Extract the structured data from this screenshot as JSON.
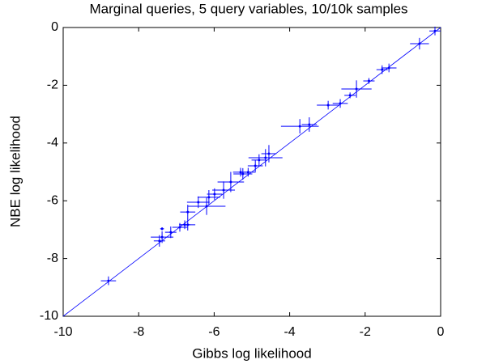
{
  "chart_data": {
    "type": "scatter",
    "title": "Marginal queries, 5 query variables, 10/10k samples",
    "x_label": "Gibbs log likelihood",
    "y_label": "NBE log likelihood",
    "color": "#0000ff",
    "x": [
      -0.15,
      -0.56,
      -1.37,
      -1.55,
      -1.9,
      -2.23,
      -2.4,
      -2.66,
      -2.98,
      -3.48,
      -3.73,
      -4.55,
      -4.64,
      -4.81,
      -4.91,
      -5.1,
      -5.24,
      -5.3,
      -5.56,
      -5.75,
      -5.99,
      -6.14,
      -6.2,
      -6.42,
      -6.7,
      -6.78,
      -6.7,
      -6.91,
      -7.15,
      -7.38,
      -7.38,
      -7.45,
      -8.8
    ],
    "values": [
      -0.12,
      -0.56,
      -1.4,
      -1.46,
      -1.85,
      -2.13,
      -2.35,
      -2.63,
      -2.69,
      -3.36,
      -3.42,
      -4.37,
      -4.51,
      -4.59,
      -4.79,
      -5.01,
      -5.07,
      -5.01,
      -5.35,
      -5.63,
      -5.77,
      -5.88,
      -6.19,
      -6.05,
      -6.39,
      -6.83,
      -6.83,
      -6.92,
      -7.09,
      -6.97,
      -7.26,
      -7.39,
      -8.77
    ],
    "x_err": [
      0.15,
      0.25,
      0.2,
      0.15,
      0.15,
      0.4,
      0.15,
      0.2,
      0.3,
      0.2,
      0.5,
      0.2,
      0.45,
      0.2,
      0.2,
      0.2,
      0.25,
      0.2,
      0.35,
      0.3,
      0.2,
      0.3,
      0.5,
      0.3,
      0.2,
      0.15,
      0.2,
      0.2,
      0.15,
      0.05,
      0.3,
      0.15,
      0.2
    ],
    "y_err": [
      0.15,
      0.2,
      0.15,
      0.15,
      0.1,
      0.3,
      0.1,
      0.15,
      0.15,
      0.25,
      0.25,
      0.3,
      0.3,
      0.2,
      0.2,
      0.15,
      0.2,
      0.15,
      0.35,
      0.3,
      0.2,
      0.25,
      0.3,
      0.2,
      0.25,
      0.15,
      0.2,
      0.15,
      0.2,
      0.05,
      0.2,
      0.2,
      0.15
    ],
    "reference_line": {
      "x": [
        -10,
        0
      ],
      "y": [
        -10,
        0
      ]
    },
    "xlim": [
      -10,
      0
    ],
    "ylim": [
      -10,
      0
    ],
    "xticks": [
      -10,
      -8,
      -6,
      -4,
      -2,
      0
    ],
    "yticks": [
      -10,
      -8,
      -6,
      -4,
      -2,
      0
    ]
  }
}
